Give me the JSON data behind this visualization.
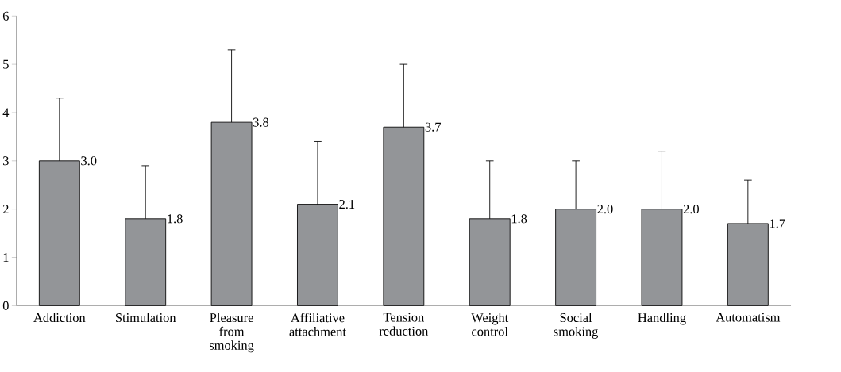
{
  "chart_data": {
    "type": "bar",
    "categories": [
      "Addiction",
      "Stimulation",
      "Pleasure from smoking",
      "Affiliative attachment",
      "Tension reduction",
      "Weight control",
      "Social smoking",
      "Handling",
      "Automatism"
    ],
    "values": [
      3.0,
      1.8,
      3.8,
      2.1,
      3.7,
      1.8,
      2.0,
      2.0,
      1.7
    ],
    "value_labels": [
      "3.0",
      "1.8",
      "3.8",
      "2.1",
      "3.7",
      "1.8",
      "2.0",
      "2.0",
      "1.7"
    ],
    "errors": [
      [
        3.0,
        4.3
      ],
      [
        1.8,
        2.9
      ],
      [
        3.8,
        5.3
      ],
      [
        2.1,
        3.4
      ],
      [
        3.7,
        5.0
      ],
      [
        1.8,
        3.0
      ],
      [
        2.0,
        3.0
      ],
      [
        2.0,
        3.2
      ],
      [
        1.7,
        2.6
      ]
    ],
    "color": "#939598",
    "ylim": [
      0,
      6
    ],
    "yticks": [
      0,
      1,
      2,
      3,
      4,
      5,
      6
    ],
    "grid": false
  }
}
